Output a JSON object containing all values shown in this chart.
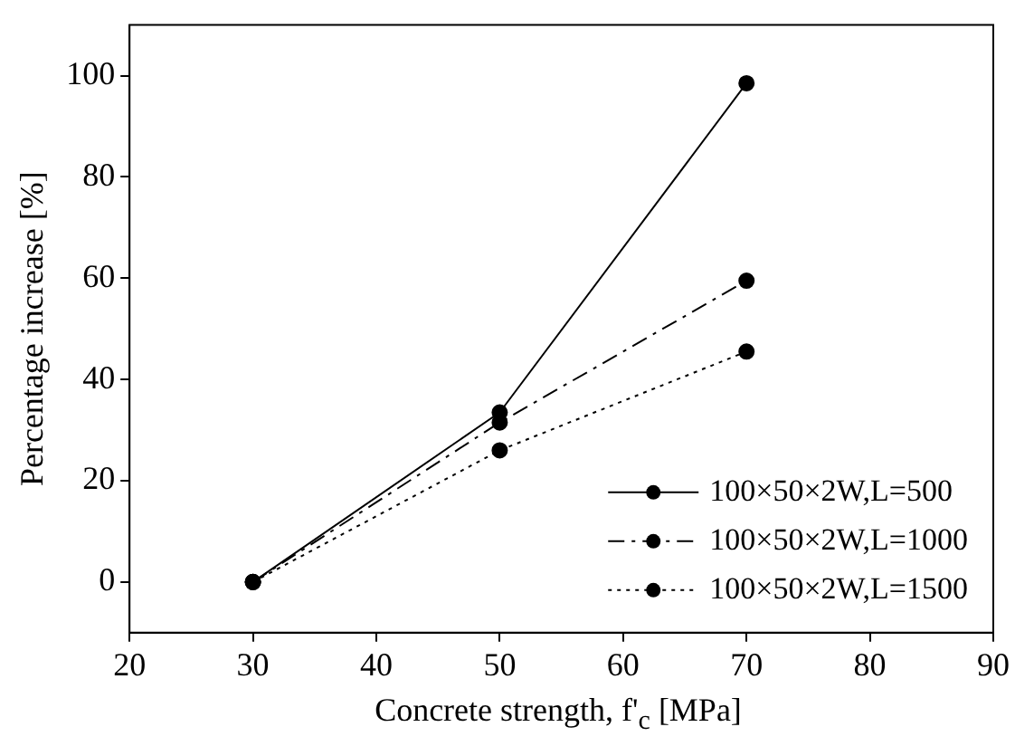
{
  "chart_data": {
    "type": "line",
    "xlabel": "Concrete strength, f'$_{c}$ [MPa]",
    "ylabel": "Percentage increase [%]",
    "x": [
      30,
      50,
      70
    ],
    "series": [
      {
        "name": "100×50×2W,L=500",
        "color": "#000000",
        "values": [
          0,
          33.5,
          98.5
        ],
        "line_style": "solid"
      },
      {
        "name": "100×50×2W,L=1000",
        "color": "#000000",
        "values": [
          0,
          31.5,
          59.5
        ],
        "line_style": "dashed"
      },
      {
        "name": "100×50×2W,L=1500",
        "color": "#000000",
        "values": [
          0,
          26,
          45.5
        ],
        "line_style": "dotted"
      }
    ],
    "xlim": [
      20,
      90
    ],
    "xticks": [
      20,
      30,
      40,
      50,
      60,
      70,
      80,
      90
    ],
    "ylim": [
      -10,
      110
    ],
    "yticks": [
      0,
      20,
      40,
      60,
      80,
      100
    ],
    "grid": false,
    "legend": "bottom right",
    "marker": "circle"
  }
}
